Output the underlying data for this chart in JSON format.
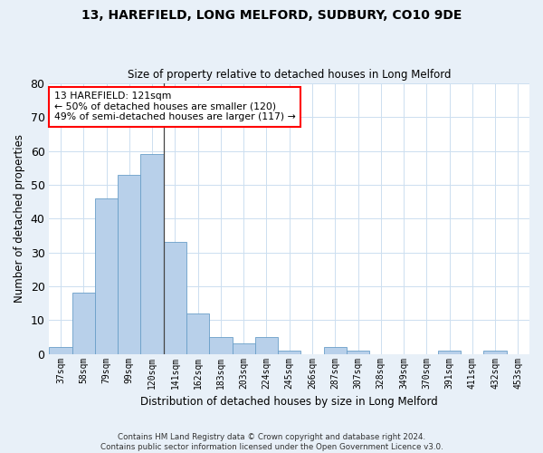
{
  "title1": "13, HAREFIELD, LONG MELFORD, SUDBURY, CO10 9DE",
  "title2": "Size of property relative to detached houses in Long Melford",
  "xlabel": "Distribution of detached houses by size in Long Melford",
  "ylabel": "Number of detached properties",
  "categories": [
    "37sqm",
    "58sqm",
    "79sqm",
    "99sqm",
    "120sqm",
    "141sqm",
    "162sqm",
    "183sqm",
    "203sqm",
    "224sqm",
    "245sqm",
    "266sqm",
    "287sqm",
    "307sqm",
    "328sqm",
    "349sqm",
    "370sqm",
    "391sqm",
    "411sqm",
    "432sqm",
    "453sqm"
  ],
  "values": [
    2,
    18,
    46,
    53,
    59,
    33,
    12,
    5,
    3,
    5,
    1,
    0,
    2,
    1,
    0,
    0,
    0,
    1,
    0,
    1,
    0
  ],
  "bar_color": "#b8d0ea",
  "bar_edge_color": "#6a9fc8",
  "grid_color": "#ccdff0",
  "figure_background": "#e8f0f8",
  "axes_background": "#ffffff",
  "vline_index": 4,
  "annotation_text": "13 HAREFIELD: 121sqm\n← 50% of detached houses are smaller (120)\n49% of semi-detached houses are larger (117) →",
  "annotation_box_color": "white",
  "annotation_box_edge": "red",
  "ylim": [
    0,
    80
  ],
  "yticks": [
    0,
    10,
    20,
    30,
    40,
    50,
    60,
    70,
    80
  ],
  "footer": "Contains HM Land Registry data © Crown copyright and database right 2024.\nContains public sector information licensed under the Open Government Licence v3.0."
}
